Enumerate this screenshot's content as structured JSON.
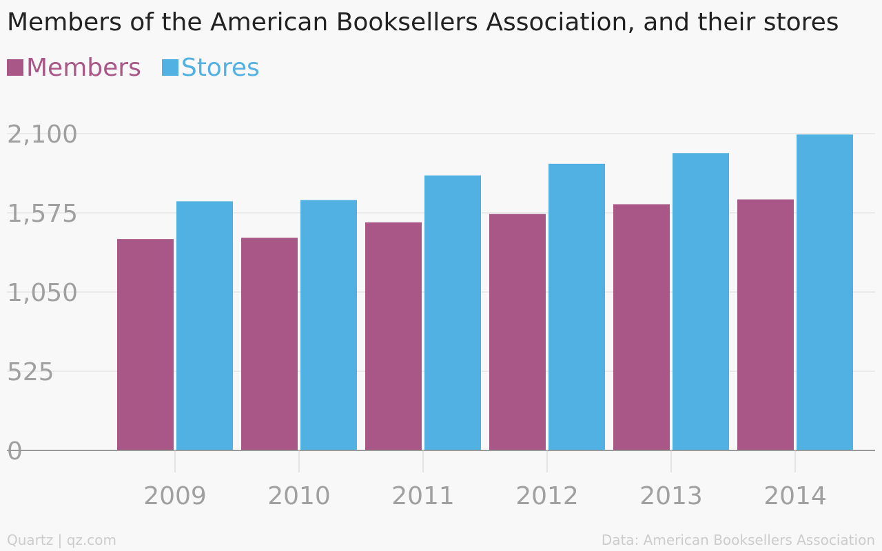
{
  "chart_data": {
    "type": "bar",
    "title": "Members of the American Booksellers Association, and their stores",
    "categories": [
      "2009",
      "2010",
      "2011",
      "2012",
      "2013",
      "2014"
    ],
    "series": [
      {
        "name": "Members",
        "color": "#a95786",
        "values": [
          1401,
          1410,
          1512,
          1567,
          1632,
          1664
        ]
      },
      {
        "name": "Stores",
        "color": "#52b1e3",
        "values": [
          1651,
          1660,
          1823,
          1900,
          1971,
          2094
        ]
      }
    ],
    "ylim": [
      0,
      2100
    ],
    "yticks": [
      "0",
      "525",
      "1,050",
      "1,575",
      "2,100"
    ],
    "xlabel": "",
    "ylabel": "",
    "grid": true,
    "legend": "top-left"
  },
  "footer": {
    "credit": "Quartz | qz.com",
    "source": "Data: American Booksellers Association"
  }
}
